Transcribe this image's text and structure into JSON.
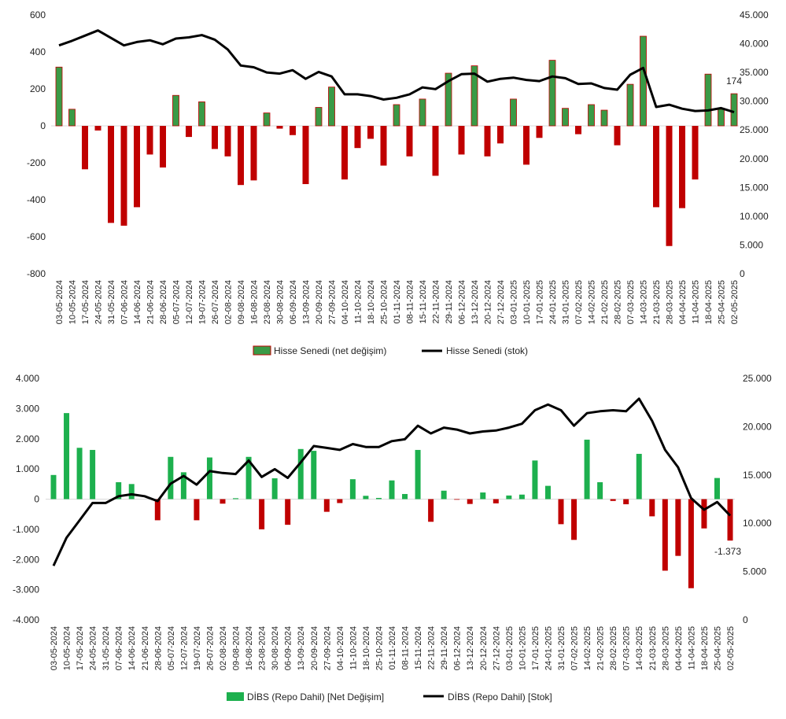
{
  "chart_data": [
    {
      "type": "bar",
      "categories": [
        "03-05-2024",
        "10-05-2024",
        "17-05-2024",
        "24-05-2024",
        "31-05-2024",
        "07-06-2024",
        "14-06-2024",
        "21-06-2024",
        "28-06-2024",
        "05-07-2024",
        "12-07-2024",
        "19-07-2024",
        "26-07-2024",
        "02-08-2024",
        "09-08-2024",
        "16-08-2024",
        "23-08-2024",
        "30-08-2024",
        "06-09-2024",
        "13-09-2024",
        "20-09-2024",
        "27-09-2024",
        "04-10-2024",
        "11-10-2024",
        "18-10-2024",
        "25-10-2024",
        "01-11-2024",
        "08-11-2024",
        "15-11-2024",
        "22-11-2024",
        "29-11-2024",
        "06-12-2024",
        "13-12-2024",
        "20-12-2024",
        "27-12-2024",
        "03-01-2025",
        "10-01-2025",
        "17-01-2025",
        "24-01-2025",
        "31-01-2025",
        "07-02-2025",
        "14-02-2025",
        "21-02-2025",
        "28-02-2025",
        "07-03-2025",
        "14-03-2025",
        "21-03-2025",
        "28-03-2025",
        "04-04-2025",
        "11-04-2025",
        "18-04-2025",
        "25-04-2025",
        "02-05-2025"
      ],
      "series": [
        {
          "name": "Hisse Senedi (net değişim)",
          "kind": "bar",
          "axis": "left",
          "colors": {
            "pos": "#3a9a46",
            "neg": "#c00000"
          },
          "values": [
            318,
            90,
            -235,
            -25,
            -525,
            -540,
            -440,
            -155,
            -225,
            165,
            -60,
            130,
            -125,
            -165,
            -320,
            -295,
            70,
            -15,
            -50,
            -315,
            100,
            210,
            -290,
            -120,
            -70,
            -215,
            115,
            -165,
            145,
            -270,
            285,
            -155,
            325,
            -165,
            -95,
            145,
            -210,
            -65,
            355,
            95,
            -45,
            115,
            85,
            -105,
            225,
            485,
            -440,
            -650,
            -445,
            -290,
            280,
            90,
            174
          ]
        },
        {
          "name": "Hisse Senedi (stok)",
          "kind": "line",
          "axis": "right",
          "color": "#000000",
          "values": [
            39700,
            40500,
            41400,
            42300,
            41000,
            39700,
            40300,
            40600,
            39900,
            40900,
            41100,
            41500,
            40700,
            39000,
            36200,
            35900,
            35000,
            34800,
            35400,
            33900,
            35100,
            34300,
            31200,
            31200,
            30900,
            30300,
            30600,
            31200,
            32400,
            32100,
            33500,
            34700,
            34800,
            33400,
            33900,
            34100,
            33700,
            33500,
            34300,
            34000,
            33000,
            33100,
            32300,
            32000,
            34600,
            35800,
            29000,
            29400,
            28700,
            28300,
            28400,
            28800,
            28100
          ]
        }
      ],
      "ylim_left": [
        -800,
        600
      ],
      "ylim_right": [
        0,
        45000
      ],
      "yticks_left": [
        "600",
        "400",
        "200",
        "0",
        "-200",
        "-400",
        "-600",
        "-800"
      ],
      "yticks_right": [
        "45.000",
        "40.000",
        "35.000",
        "30.000",
        "25.000",
        "20.000",
        "15.000",
        "10.000",
        "5.000",
        "0"
      ],
      "data_label": "174",
      "legend": [
        "Hisse Senedi (net değişim)",
        "Hisse Senedi (stok)"
      ],
      "legend_position": "bottom"
    },
    {
      "type": "bar",
      "categories": [
        "03-05-2024",
        "10-05-2024",
        "17-05-2024",
        "24-05-2024",
        "31-05-2024",
        "07-06-2024",
        "14-06-2024",
        "21-06-2024",
        "28-06-2024",
        "05-07-2024",
        "12-07-2024",
        "19-07-2024",
        "26-07-2024",
        "02-08-2024",
        "09-08-2024",
        "16-08-2024",
        "23-08-2024",
        "30-08-2024",
        "06-09-2024",
        "13-09-2024",
        "20-09-2024",
        "27-09-2024",
        "04-10-2024",
        "11-10-2024",
        "18-10-2024",
        "25-10-2024",
        "01-11-2024",
        "08-11-2024",
        "15-11-2024",
        "22-11-2024",
        "29-11-2024",
        "06-12-2024",
        "13-12-2024",
        "20-12-2024",
        "27-12-2024",
        "03-01-2025",
        "10-01-2025",
        "17-01-2025",
        "24-01-2025",
        "31-01-2025",
        "07-02-2025",
        "14-02-2025",
        "21-02-2025",
        "28-02-2025",
        "07-03-2025",
        "14-03-2025",
        "21-03-2025",
        "28-03-2025",
        "04-04-2025",
        "11-04-2025",
        "18-04-2025",
        "25-04-2025",
        "02-05-2025"
      ],
      "series": [
        {
          "name": "DİBS (Repo Dahil) [Net Değişim]",
          "kind": "bar",
          "axis": "left",
          "colors": {
            "pos": "#1db04e",
            "neg": "#c00000"
          },
          "values": [
            800,
            2850,
            1700,
            1630,
            0,
            560,
            500,
            0,
            -700,
            1400,
            890,
            -700,
            1380,
            -150,
            30,
            1400,
            -1000,
            690,
            -850,
            1660,
            1600,
            -420,
            -130,
            660,
            110,
            40,
            620,
            170,
            1630,
            -750,
            280,
            -20,
            -160,
            220,
            -140,
            120,
            150,
            1280,
            440,
            -830,
            -1350,
            1970,
            560,
            -60,
            -170,
            1500,
            -570,
            -2370,
            -1880,
            -2950,
            -970,
            700,
            -1373
          ]
        },
        {
          "name": "DİBS (Repo Dahil) [Stok]",
          "kind": "line",
          "axis": "right",
          "color": "#000000",
          "values": [
            5600,
            8500,
            10300,
            12100,
            12100,
            12800,
            13000,
            12800,
            12300,
            14100,
            14900,
            14000,
            15400,
            15200,
            15100,
            16500,
            14800,
            15600,
            14700,
            16300,
            18000,
            17800,
            17600,
            18200,
            17900,
            17900,
            18500,
            18700,
            20100,
            19300,
            19900,
            19700,
            19300,
            19500,
            19600,
            19900,
            20300,
            21700,
            22300,
            21700,
            20100,
            21400,
            21600,
            21700,
            21600,
            22900,
            20600,
            17600,
            15800,
            12600,
            11400,
            12200,
            10800
          ]
        }
      ],
      "ylim_left": [
        -4000,
        4000
      ],
      "ylim_right": [
        0,
        25000
      ],
      "yticks_left": [
        "4.000",
        "3.000",
        "2.000",
        "1.000",
        "0",
        "-1.000",
        "-2.000",
        "-3.000",
        "-4.000"
      ],
      "yticks_right": [
        "25.000",
        "20.000",
        "15.000",
        "10.000",
        "5.000",
        "0"
      ],
      "data_label": "-1.373",
      "legend": [
        "DİBS (Repo Dahil) [Net Değişim]",
        "DİBS (Repo Dahil) [Stok]"
      ],
      "legend_position": "bottom"
    }
  ]
}
